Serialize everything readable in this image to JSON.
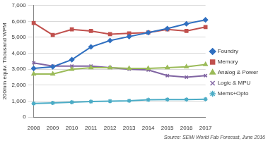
{
  "chart_data": {
    "type": "line",
    "y_label": "200mm equiv. Thousand WPM",
    "annotation": "Source: SEMI World Fab Forecast, June 2016",
    "categories": [
      "2008",
      "2009",
      "2010",
      "2011",
      "2012",
      "2013",
      "2014",
      "2015",
      "2016",
      "2017"
    ],
    "series": [
      {
        "name": "Foundry",
        "color": "#2f6fc0",
        "marker": "diamond",
        "values": [
          3050,
          3150,
          3600,
          4400,
          4800,
          5050,
          5300,
          5550,
          5850,
          6100
        ]
      },
      {
        "name": "Memory",
        "color": "#c0504d",
        "marker": "square",
        "values": [
          5900,
          5150,
          5500,
          5400,
          5200,
          5250,
          5300,
          5500,
          5400,
          5650
        ]
      },
      {
        "name": "Analog & Power",
        "color": "#9bbb59",
        "marker": "triangle",
        "values": [
          2700,
          2700,
          3000,
          3100,
          3100,
          3050,
          3050,
          3100,
          3150,
          3300
        ]
      },
      {
        "name": "Logic & MPU",
        "color": "#8064a2",
        "marker": "x",
        "values": [
          3400,
          3200,
          3200,
          3200,
          3100,
          3000,
          2950,
          2600,
          2500,
          2600
        ]
      },
      {
        "name": "Mems+Opto",
        "color": "#4bacc6",
        "marker": "star",
        "values": [
          850,
          880,
          930,
          970,
          1000,
          1020,
          1080,
          1100,
          1100,
          1120
        ]
      }
    ],
    "ylim": [
      0,
      7000
    ],
    "yticks": [
      0,
      {
        "value": 1000,
        "label": "1,000"
      },
      {
        "value": 2000,
        "label": "2,000"
      },
      {
        "value": 3000,
        "label": "3,000"
      },
      {
        "value": 4000,
        "label": "4,000"
      },
      {
        "value": 5000,
        "label": "5,000"
      },
      {
        "value": 6000,
        "label": "6,000"
      },
      {
        "value": 7000,
        "label": "7,000"
      }
    ],
    "grid": true,
    "legend": "right"
  }
}
